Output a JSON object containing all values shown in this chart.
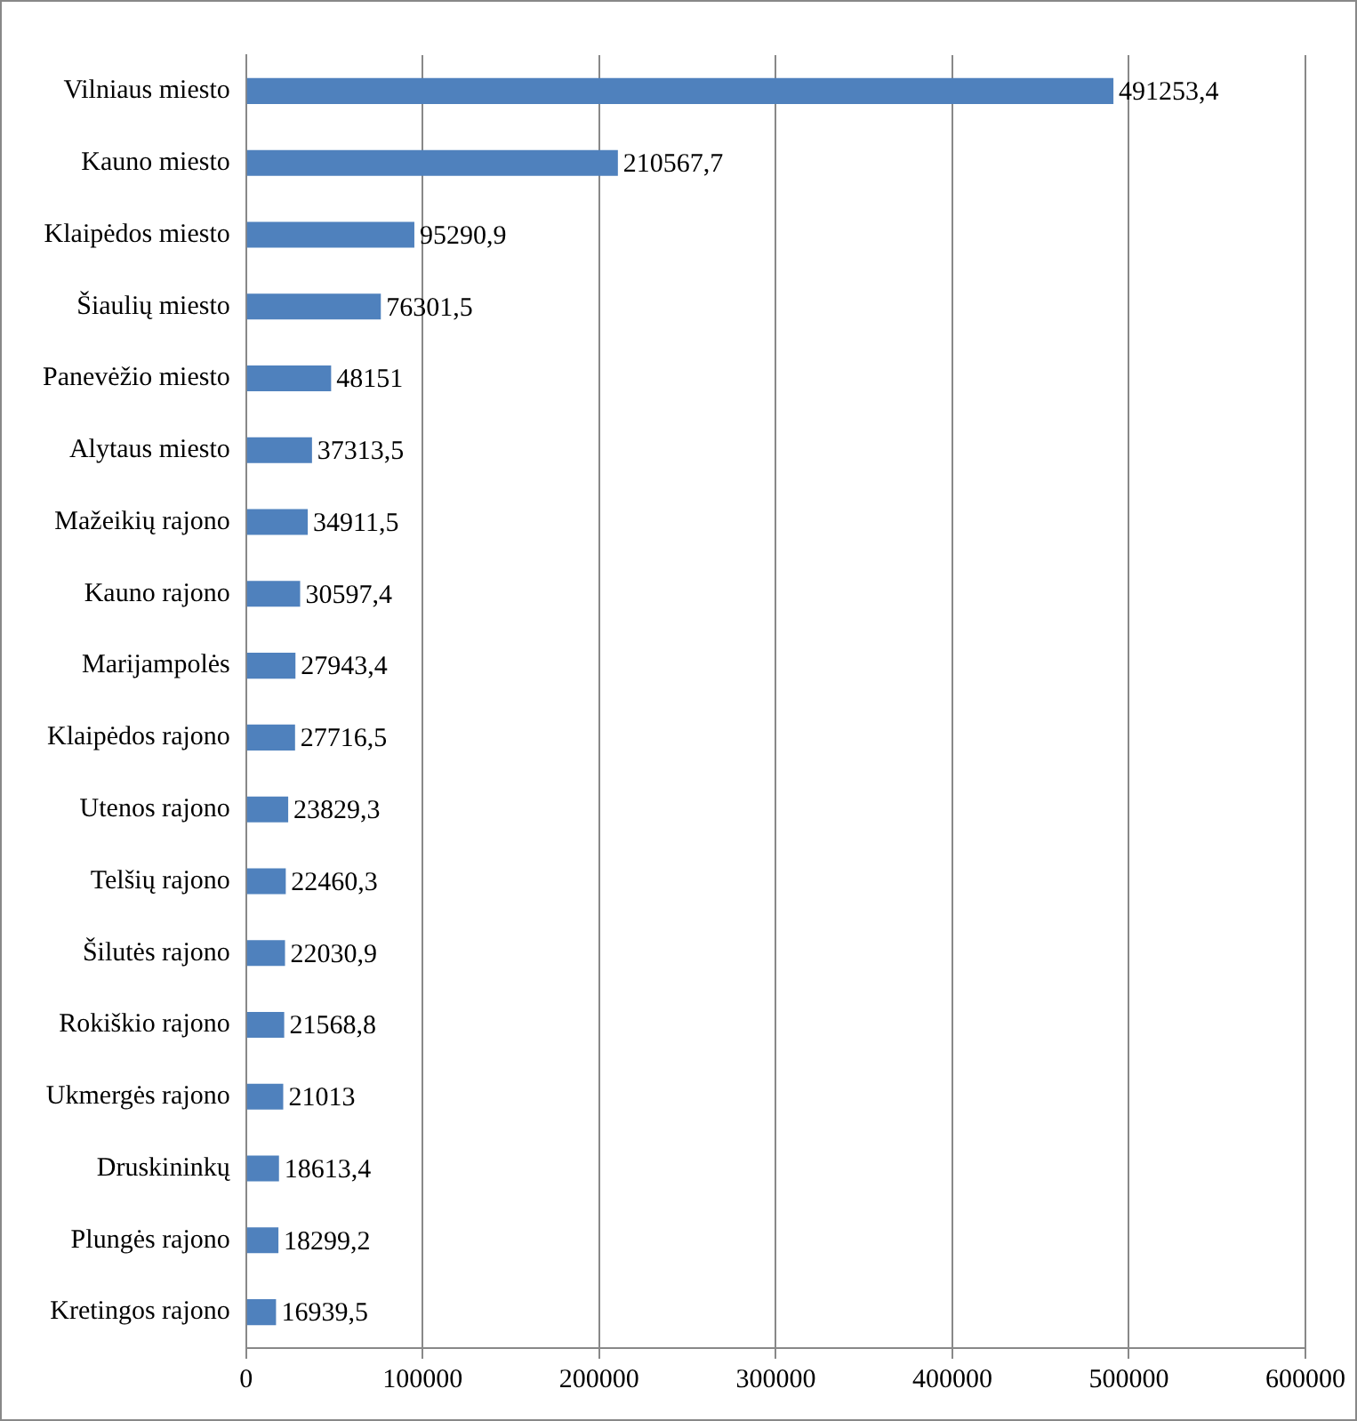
{
  "chart_data": {
    "type": "bar",
    "orientation": "horizontal",
    "categories": [
      "Vilniaus miesto",
      "Kauno miesto",
      "Klaipėdos miesto",
      "Šiaulių miesto",
      "Panevėžio miesto",
      "Alytaus miesto",
      "Mažeikių rajono",
      "Kauno rajono",
      "Marijampolės",
      "Klaipėdos rajono",
      "Utenos rajono",
      "Telšių rajono",
      "Šilutės rajono",
      "Rokiškio rajono",
      "Ukmergės rajono",
      "Druskininkų",
      "Plungės rajono",
      "Kretingos rajono"
    ],
    "values": [
      491253.4,
      210567.7,
      95290.9,
      76301.5,
      48151,
      37313.5,
      34911.5,
      30597.4,
      27943.4,
      27716.5,
      23829.3,
      22460.3,
      22030.9,
      21568.8,
      21013,
      18613.4,
      18299.2,
      16939.5
    ],
    "value_labels": [
      "491253,4",
      "210567,7",
      "95290,9",
      "76301,5",
      "48151",
      "37313,5",
      "34911,5",
      "30597,4",
      "27943,4",
      "27716,5",
      "23829,3",
      "22460,3",
      "22030,9",
      "21568,8",
      "21013",
      "18613,4",
      "18299,2",
      "16939,5"
    ],
    "color": "#4f81bd",
    "xlim": [
      0,
      600000
    ],
    "xticks": [
      0,
      100000,
      200000,
      300000,
      400000,
      500000,
      600000
    ],
    "grid": "x",
    "legend": false
  }
}
